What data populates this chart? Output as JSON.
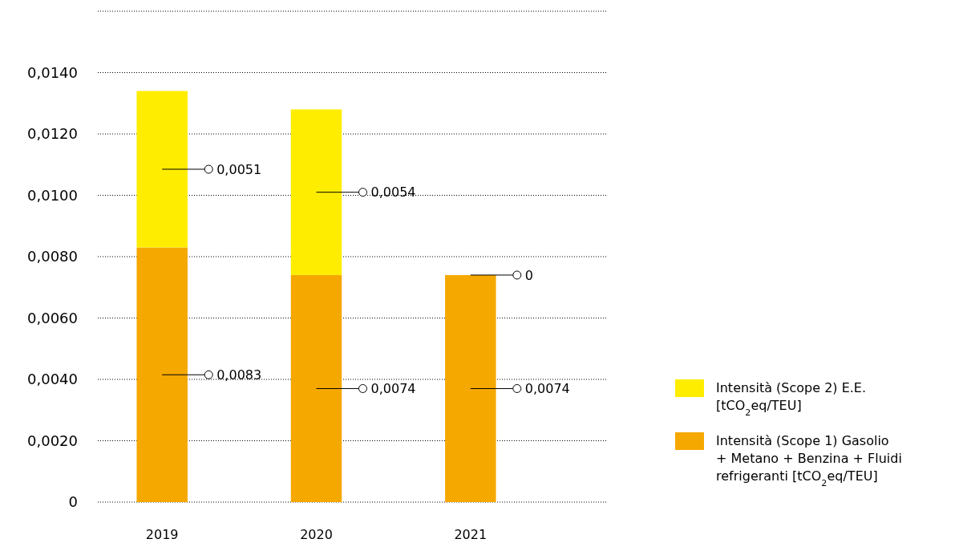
{
  "chart_data": {
    "type": "bar",
    "stacked": true,
    "categories": [
      "2019",
      "2020",
      "2021"
    ],
    "series": [
      {
        "name": "Intensità (Scope 1) Gasolio + Metano + Benzina + Fluidi refrigeranti [tCO$_{2}$eq/TEU]",
        "color": "#f5a800",
        "values": [
          0.0083,
          0.0074,
          0.0074
        ],
        "value_labels": [
          "0,0083",
          "0,0074",
          "0,0074"
        ]
      },
      {
        "name": "Intensità (Scope 2) E.E. [tCO$_{2}$eq/TEU]",
        "color": "#ffed00",
        "values": [
          0.0051,
          0.0054,
          0
        ],
        "value_labels": [
          "0,0051",
          "0,0054",
          "0"
        ]
      }
    ],
    "ylim": [
      0,
      0.016
    ],
    "yticks": [
      {
        "value": 0,
        "label": "0"
      },
      {
        "value": 0.002,
        "label": "0,0020"
      },
      {
        "value": 0.004,
        "label": "0,0040"
      },
      {
        "value": 0.006,
        "label": "0,0060"
      },
      {
        "value": 0.008,
        "label": "0,0080"
      },
      {
        "value": 0.01,
        "label": "0,0100"
      },
      {
        "value": 0.012,
        "label": "0,0120"
      },
      {
        "value": 0.014,
        "label": "0,0140"
      },
      {
        "value": 0.016,
        "label": null
      }
    ],
    "grid": "y",
    "legend": "right"
  }
}
